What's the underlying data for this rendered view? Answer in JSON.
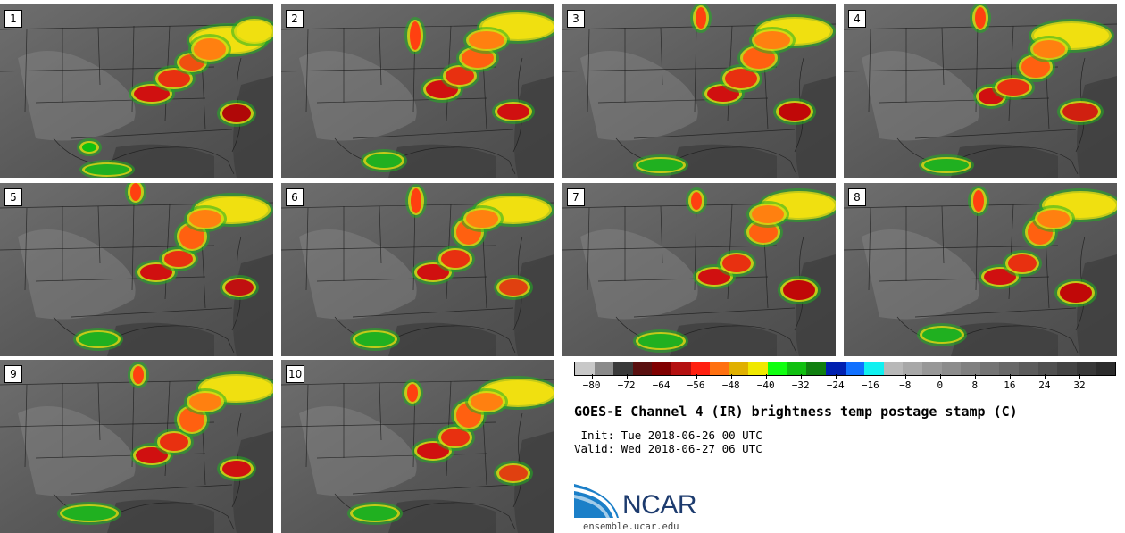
{
  "panels": [
    {
      "label": "1",
      "storms": [
        [
          170,
          105,
          20,
          9,
          "#d01010"
        ],
        [
          195,
          88,
          18,
          10,
          "#e83010"
        ],
        [
          215,
          70,
          14,
          9,
          "#f05010"
        ],
        [
          265,
          127,
          16,
          10,
          "#b00808"
        ],
        [
          255,
          45,
          40,
          14,
          "#f0e010"
        ],
        [
          235,
          55,
          18,
          12,
          "#ff8010"
        ],
        [
          285,
          35,
          20,
          12,
          "#f0e010"
        ],
        [
          120,
          190,
          25,
          6,
          "#20b020"
        ],
        [
          100,
          165,
          8,
          5,
          "#10c010"
        ]
      ]
    },
    {
      "label": "2",
      "storms": [
        [
          495,
          100,
          18,
          10,
          "#d01010"
        ],
        [
          515,
          85,
          16,
          10,
          "#e83010"
        ],
        [
          535,
          65,
          18,
          11,
          "#ff6010"
        ],
        [
          580,
          30,
          40,
          14,
          "#f0e010"
        ],
        [
          545,
          45,
          20,
          10,
          "#ff8010"
        ],
        [
          575,
          125,
          18,
          9,
          "#d01010"
        ],
        [
          430,
          180,
          20,
          8,
          "#20b020"
        ],
        [
          465,
          40,
          6,
          16,
          "#ff4010"
        ]
      ]
    },
    {
      "label": "3",
      "storms": [
        [
          810,
          105,
          18,
          9,
          "#d01010"
        ],
        [
          830,
          88,
          18,
          11,
          "#e83010"
        ],
        [
          850,
          65,
          18,
          12,
          "#ff6010"
        ],
        [
          890,
          35,
          40,
          14,
          "#f0e010"
        ],
        [
          865,
          45,
          20,
          10,
          "#ff8010"
        ],
        [
          890,
          125,
          18,
          10,
          "#c00808"
        ],
        [
          740,
          185,
          25,
          7,
          "#20b020"
        ],
        [
          785,
          20,
          6,
          12,
          "#ff4010"
        ]
      ]
    },
    {
      "label": "4",
      "storms": [
        [
          1110,
          108,
          14,
          9,
          "#d01010"
        ],
        [
          1135,
          98,
          18,
          9,
          "#e83010"
        ],
        [
          1160,
          75,
          16,
          12,
          "#ff6010"
        ],
        [
          1200,
          40,
          42,
          14,
          "#f0e010"
        ],
        [
          1175,
          55,
          18,
          10,
          "#ff8010"
        ],
        [
          1210,
          125,
          20,
          10,
          "#d02010"
        ],
        [
          1060,
          185,
          25,
          7,
          "#20b020"
        ],
        [
          1098,
          20,
          6,
          12,
          "#ff4010"
        ]
      ]
    },
    {
      "label": "5",
      "storms": [
        [
          175,
          305,
          18,
          9,
          "#d01010"
        ],
        [
          200,
          290,
          16,
          9,
          "#e83010"
        ],
        [
          215,
          265,
          14,
          14,
          "#ff6010"
        ],
        [
          260,
          235,
          40,
          14,
          "#f0e010"
        ],
        [
          230,
          245,
          18,
          10,
          "#ff8010"
        ],
        [
          268,
          322,
          16,
          9,
          "#c01010"
        ],
        [
          110,
          380,
          22,
          8,
          "#20b020"
        ],
        [
          152,
          215,
          6,
          10,
          "#ff4010"
        ]
      ]
    },
    {
      "label": "6",
      "storms": [
        [
          485,
          305,
          18,
          9,
          "#d01010"
        ],
        [
          510,
          290,
          16,
          10,
          "#e83010"
        ],
        [
          525,
          260,
          14,
          14,
          "#ff6010"
        ],
        [
          575,
          235,
          40,
          14,
          "#f0e010"
        ],
        [
          540,
          245,
          18,
          10,
          "#ff8010"
        ],
        [
          575,
          322,
          16,
          9,
          "#e04010"
        ],
        [
          420,
          380,
          22,
          8,
          "#20b020"
        ],
        [
          466,
          225,
          6,
          14,
          "#ff4010"
        ]
      ]
    },
    {
      "label": "7",
      "storms": [
        [
          800,
          310,
          18,
          9,
          "#d01010"
        ],
        [
          825,
          295,
          16,
          10,
          "#e83010"
        ],
        [
          855,
          260,
          16,
          12,
          "#ff6010"
        ],
        [
          895,
          230,
          40,
          14,
          "#f0e010"
        ],
        [
          860,
          240,
          18,
          10,
          "#ff8010"
        ],
        [
          895,
          325,
          18,
          11,
          "#c00808"
        ],
        [
          740,
          382,
          25,
          8,
          "#20b020"
        ],
        [
          780,
          225,
          6,
          10,
          "#ff4010"
        ]
      ]
    },
    {
      "label": "8",
      "storms": [
        [
          1120,
          310,
          18,
          9,
          "#d01010"
        ],
        [
          1145,
          295,
          16,
          10,
          "#e83010"
        ],
        [
          1165,
          260,
          14,
          14,
          "#ff6010"
        ],
        [
          1210,
          230,
          40,
          14,
          "#f0e010"
        ],
        [
          1180,
          245,
          18,
          10,
          "#ff8010"
        ],
        [
          1205,
          328,
          18,
          11,
          "#c00808"
        ],
        [
          1055,
          375,
          22,
          8,
          "#20b020"
        ],
        [
          1096,
          225,
          6,
          12,
          "#ff4010"
        ]
      ]
    },
    {
      "label": "9",
      "storms": [
        [
          170,
          510,
          18,
          9,
          "#d01010"
        ],
        [
          195,
          495,
          16,
          10,
          "#e83010"
        ],
        [
          215,
          470,
          14,
          14,
          "#ff6010"
        ],
        [
          265,
          435,
          40,
          14,
          "#f0e010"
        ],
        [
          230,
          450,
          18,
          10,
          "#ff8010"
        ],
        [
          265,
          525,
          16,
          9,
          "#d01010"
        ],
        [
          100,
          575,
          30,
          8,
          "#20b020"
        ],
        [
          155,
          420,
          6,
          10,
          "#ff4010"
        ]
      ]
    },
    {
      "label": "10",
      "storms": [
        [
          485,
          505,
          18,
          9,
          "#d01010"
        ],
        [
          510,
          490,
          16,
          10,
          "#e83010"
        ],
        [
          525,
          465,
          14,
          14,
          "#ff6010"
        ],
        [
          580,
          440,
          40,
          14,
          "#f0e010"
        ],
        [
          545,
          450,
          18,
          10,
          "#ff8010"
        ],
        [
          575,
          530,
          16,
          9,
          "#e04010"
        ],
        [
          420,
          575,
          25,
          8,
          "#20b020"
        ],
        [
          462,
          440,
          6,
          10,
          "#ff4010"
        ]
      ]
    }
  ],
  "colorbar": {
    "colors": [
      "#c8c8c8",
      "#8a8a8a",
      "#3a3a3a",
      "#5a1010",
      "#800000",
      "#b41010",
      "#ff2010",
      "#ff7010",
      "#e0b000",
      "#f0e800",
      "#10ff10",
      "#10c010",
      "#108010",
      "#0020b0",
      "#1070ff",
      "#10f0f0",
      "#b8b8b8",
      "#a8a8a8",
      "#989898",
      "#8c8c8c",
      "#808080",
      "#747474",
      "#686868",
      "#5c5c5c",
      "#505050",
      "#444444",
      "#383838",
      "#2c2c2c"
    ],
    "ticks": [
      "-80",
      "-72",
      "-64",
      "-56",
      "-48",
      "-40",
      "-32",
      "-24",
      "-16",
      "-8",
      "0",
      "8",
      "16",
      "24",
      "32"
    ],
    "min": -84,
    "max": 40
  },
  "title": "GOES-E Channel 4 (IR) brightness temp postage stamp (C)",
  "init": " Init: Tue 2018-06-26 00 UTC",
  "valid": "Valid: Wed 2018-06-27 06 UTC",
  "logo_text": "NCAR",
  "url": "ensemble.ucar.edu"
}
